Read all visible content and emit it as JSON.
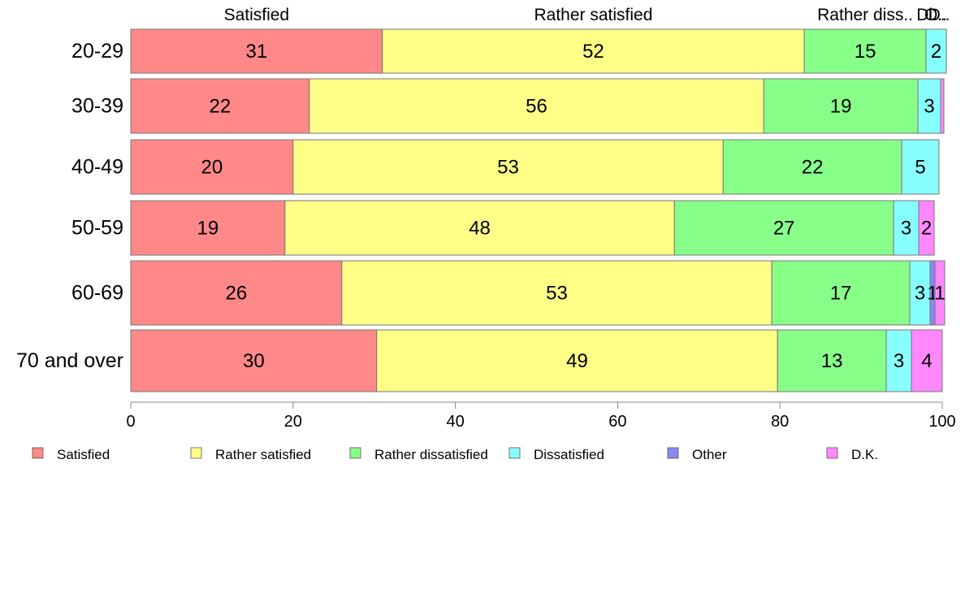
{
  "chart_data": {
    "type": "bar",
    "orientation": "horizontal",
    "stacked": true,
    "categories": [
      "20-29",
      "30-39",
      "40-49",
      "50-59",
      "60-69",
      "70 and over"
    ],
    "series": [
      {
        "name": "Satisfied",
        "color": "#ff8888",
        "values": [
          31,
          22,
          20,
          19,
          26,
          30.3
        ]
      },
      {
        "name": "Rather satisfied",
        "color": "#ffff88",
        "values": [
          52,
          56,
          53,
          48,
          53,
          49.4
        ]
      },
      {
        "name": "Rather dissatisfied",
        "color": "#88ff88",
        "values": [
          15,
          19,
          22,
          27,
          17,
          13.4
        ]
      },
      {
        "name": "Dissatisfied",
        "color": "#88ffff",
        "values": [
          2.5,
          2.8,
          4.6,
          3.1,
          2.5,
          3.1
        ]
      },
      {
        "name": "Other",
        "color": "#8888ee",
        "values": [
          0,
          0,
          0,
          0,
          0.6,
          0
        ]
      },
      {
        "name": "D.K.",
        "color": "#ff88ff",
        "values": [
          0,
          0.4,
          0,
          1.9,
          1.2,
          3.8
        ]
      }
    ],
    "data_labels": [
      [
        "31",
        "52",
        "15",
        "2",
        "",
        ""
      ],
      [
        "22",
        "56",
        "19",
        "3",
        "",
        ""
      ],
      [
        "20",
        "53",
        "22",
        "5",
        "",
        ""
      ],
      [
        "19",
        "48",
        "27",
        "3",
        "",
        "2"
      ],
      [
        "26",
        "53",
        "17",
        "3",
        "1",
        "1"
      ],
      [
        "30",
        "49",
        "13",
        "3",
        "",
        "4"
      ]
    ],
    "top_labels": [
      "Satisfied",
      "Rather satisfied",
      "Rather diss..",
      "Di..",
      "O..",
      "D.."
    ],
    "xlim": [
      0,
      100
    ],
    "xticks": [
      0,
      20,
      40,
      60,
      80,
      100
    ],
    "legend_position": "bottom",
    "grid": false
  }
}
